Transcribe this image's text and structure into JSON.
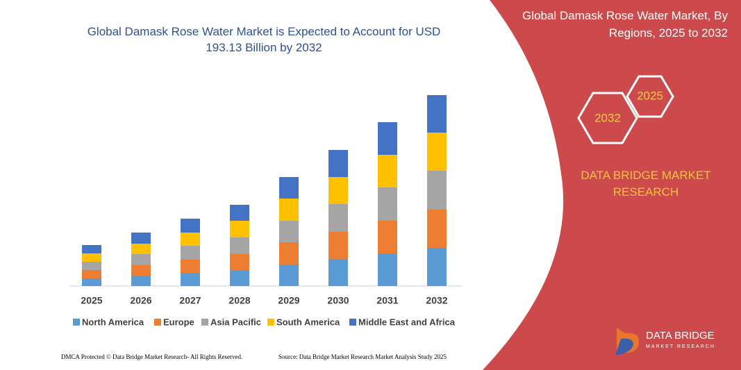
{
  "chart_data": {
    "type": "bar",
    "stacked": true,
    "title": "Global Damask Rose Water Market is Expected to Account for USD 193.13 Billion by 2032",
    "categories": [
      "2025",
      "2026",
      "2027",
      "2028",
      "2029",
      "2030",
      "2031",
      "2032"
    ],
    "series": [
      {
        "name": "North America",
        "color": "#5b9bd5",
        "values": [
          11,
          15,
          19,
          23,
          31,
          39,
          47,
          55
        ]
      },
      {
        "name": "Europe",
        "color": "#ed7d31",
        "values": [
          12,
          15,
          19,
          23,
          32,
          39,
          47,
          55
        ]
      },
      {
        "name": "Asia Pacific",
        "color": "#a5a5a5",
        "values": [
          12,
          16,
          20,
          24,
          31,
          40,
          48,
          56
        ]
      },
      {
        "name": "South America",
        "color": "#ffc000",
        "values": [
          12,
          15,
          19,
          24,
          32,
          39,
          47,
          55
        ]
      },
      {
        "name": "Middle East and Africa",
        "color": "#4472c4",
        "values": [
          12,
          16,
          20,
          23,
          31,
          39,
          47,
          54
        ]
      }
    ]
  },
  "panel": {
    "title": "Global Damask Rose Water Market, By Regions, 2025 to 2032",
    "badges": [
      "2025",
      "2032"
    ],
    "brand": "DATA BRIDGE MARKET RESEARCH"
  },
  "logo": {
    "name": "DATA BRIDGE",
    "tagline": "MARKET RESEARCH"
  },
  "footer": {
    "left": "DMCA Protected © Data Bridge Market Research-  All Rights Reserved.",
    "right": "Source: Data Bridge Market Research  Market Analysis Study 2025"
  }
}
